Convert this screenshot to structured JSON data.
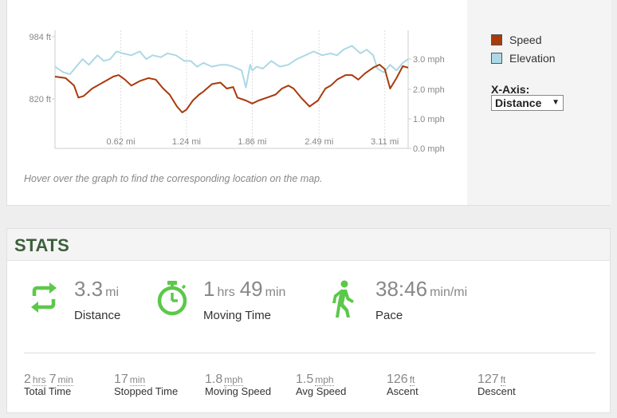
{
  "chart_data": {
    "type": "line",
    "x_ticks": [
      "0.62 mi",
      "1.24 mi",
      "1.86 mi",
      "2.49 mi",
      "3.11 mi"
    ],
    "y_left_ticks": [
      "984 ft",
      "820 ft"
    ],
    "y_right_ticks": [
      "3.0 mph",
      "2.0 mph",
      "1.0 mph",
      "0.0 mph"
    ],
    "ylim_left_ft": [
      820,
      984
    ],
    "ylim_right_mph": [
      0,
      4
    ],
    "series": [
      {
        "name": "Speed",
        "color": "#a83a0c",
        "x_mi": [
          0.0,
          0.1,
          0.18,
          0.22,
          0.27,
          0.35,
          0.45,
          0.55,
          0.6,
          0.66,
          0.72,
          0.8,
          0.88,
          0.95,
          1.02,
          1.08,
          1.15,
          1.2,
          1.24,
          1.3,
          1.36,
          1.4,
          1.48,
          1.56,
          1.62,
          1.68,
          1.72,
          1.8,
          1.86,
          1.92,
          2.0,
          2.08,
          2.14,
          2.2,
          2.25,
          2.32,
          2.4,
          2.48,
          2.55,
          2.6,
          2.66,
          2.74,
          2.8,
          2.86,
          2.92,
          3.0,
          3.06,
          3.11,
          3.16,
          3.22,
          3.28,
          3.33
        ],
        "values": [
          2.4,
          2.35,
          2.1,
          1.7,
          1.75,
          2.0,
          2.2,
          2.4,
          2.45,
          2.3,
          2.1,
          2.25,
          2.35,
          2.3,
          2.0,
          1.8,
          1.4,
          1.2,
          1.3,
          1.6,
          1.8,
          1.9,
          2.15,
          2.2,
          2.0,
          2.05,
          1.7,
          1.6,
          1.5,
          1.6,
          1.7,
          1.8,
          2.0,
          2.1,
          2.0,
          1.7,
          1.4,
          1.6,
          2.0,
          2.1,
          2.3,
          2.45,
          2.45,
          2.3,
          2.5,
          2.7,
          2.8,
          2.65,
          2.0,
          2.35,
          2.75,
          2.7
        ]
      },
      {
        "name": "Elevation",
        "color": "#add8e6",
        "x_mi": [
          0.0,
          0.08,
          0.14,
          0.2,
          0.26,
          0.32,
          0.4,
          0.46,
          0.52,
          0.58,
          0.64,
          0.72,
          0.8,
          0.86,
          0.92,
          1.0,
          1.06,
          1.14,
          1.22,
          1.28,
          1.34,
          1.4,
          1.48,
          1.56,
          1.62,
          1.68,
          1.76,
          1.8,
          1.84,
          1.86,
          1.9,
          1.96,
          2.04,
          2.12,
          2.2,
          2.28,
          2.36,
          2.44,
          2.52,
          2.6,
          2.66,
          2.72,
          2.8,
          2.88,
          2.94,
          3.0,
          3.04,
          3.1,
          3.16,
          3.22,
          3.28,
          3.33
        ],
        "values_ft": [
          905,
          890,
          885,
          905,
          925,
          910,
          935,
          920,
          925,
          945,
          940,
          935,
          945,
          925,
          935,
          930,
          940,
          935,
          920,
          920,
          905,
          915,
          905,
          910,
          910,
          905,
          895,
          850,
          910,
          895,
          905,
          900,
          920,
          905,
          910,
          925,
          935,
          945,
          935,
          940,
          935,
          950,
          960,
          940,
          950,
          935,
          900,
          890,
          910,
          895,
          915,
          925
        ]
      }
    ]
  },
  "legend": {
    "speed_label": "Speed",
    "elevation_label": "Elevation",
    "speed_color": "#a83a0c",
    "elevation_color": "#add8e6"
  },
  "xaxis": {
    "label": "X-Axis:",
    "selected": "Distance"
  },
  "hover_hint": "Hover over the graph to find the corresponding location on the map.",
  "stats": {
    "title": "STATS",
    "accent_color": "#5cc84a",
    "big": [
      {
        "icon": "swap-arrows-icon",
        "values": [
          {
            "num": "3.3",
            "unit": "mi"
          }
        ],
        "label": "Distance"
      },
      {
        "icon": "stopwatch-icon",
        "values": [
          {
            "num": "1",
            "unit": "hrs"
          },
          {
            "num": "49",
            "unit": "min"
          }
        ],
        "label": "Moving Time"
      },
      {
        "icon": "walker-icon",
        "values": [
          {
            "num": "38:46",
            "unit": "min/mi"
          }
        ],
        "label": "Pace"
      }
    ],
    "small": [
      {
        "values": [
          {
            "num": "2",
            "unit": "hrs"
          },
          {
            "num": "7",
            "unit": "min"
          }
        ],
        "label": "Total Time"
      },
      {
        "values": [
          {
            "num": "17",
            "unit": "min"
          }
        ],
        "label": "Stopped Time"
      },
      {
        "values": [
          {
            "num": "1.8",
            "unit": "mph"
          }
        ],
        "label": "Moving Speed"
      },
      {
        "values": [
          {
            "num": "1.5",
            "unit": "mph"
          }
        ],
        "label": "Avg Speed"
      },
      {
        "values": [
          {
            "num": "126",
            "unit": "ft"
          }
        ],
        "label": "Ascent"
      },
      {
        "values": [
          {
            "num": "127",
            "unit": "ft"
          }
        ],
        "label": "Descent"
      }
    ]
  }
}
